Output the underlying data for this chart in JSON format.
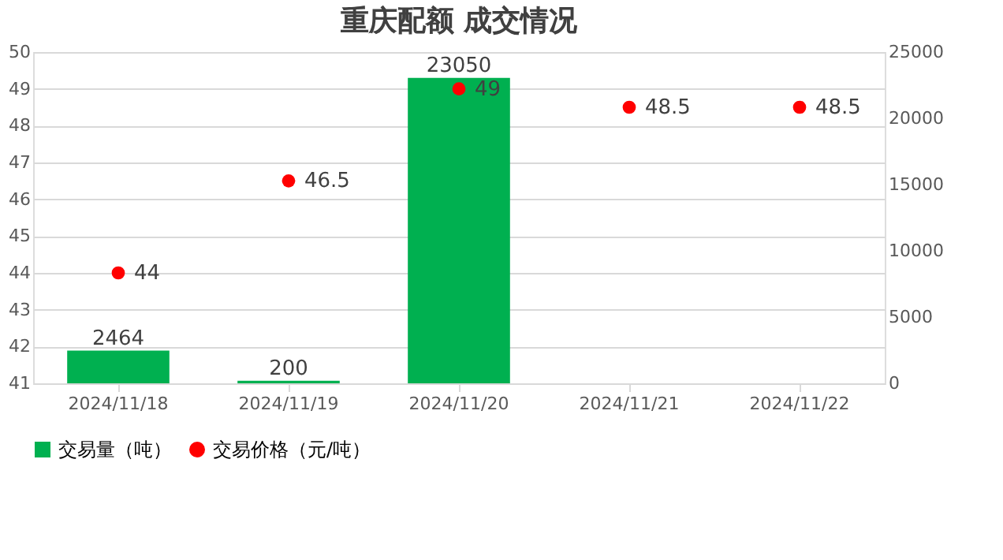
{
  "chart_data": {
    "type": "bar",
    "title": "重庆配额 成交情况",
    "categories": [
      "2024/11/18",
      "2024/11/19",
      "2024/11/20",
      "2024/11/21",
      "2024/11/22"
    ],
    "series": [
      {
        "name": "交易量（吨）",
        "axis": "y2",
        "color": "#00b050",
        "values": [
          2464,
          200,
          23050,
          null,
          null
        ]
      },
      {
        "name": "交易价格（元/吨）",
        "type": "scatter",
        "axis": "y",
        "color": "#ff0000",
        "values": [
          44,
          46.5,
          49,
          48.5,
          48.5
        ]
      }
    ],
    "ylim": [
      41,
      50
    ],
    "yticks": [
      41,
      42,
      43,
      44,
      45,
      46,
      47,
      48,
      49,
      50
    ],
    "y2lim": [
      0,
      25000
    ],
    "y2ticks": [
      0,
      5000,
      10000,
      15000,
      20000,
      25000
    ],
    "grid": "y",
    "legend": "bottom",
    "marker": "circle",
    "data_labels": true
  }
}
